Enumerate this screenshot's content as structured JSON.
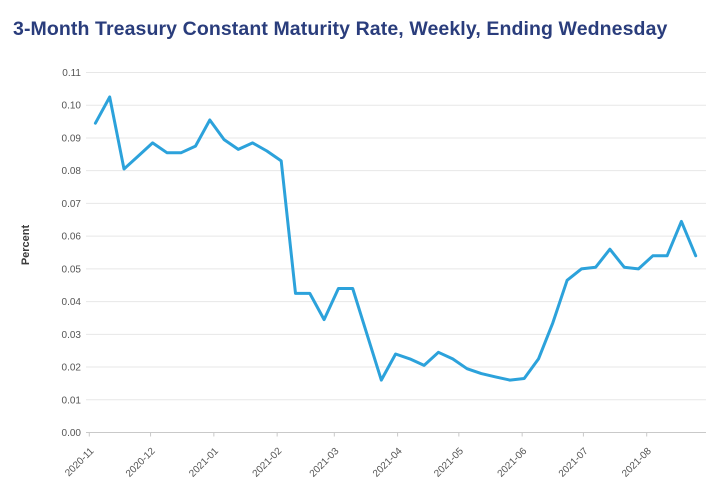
{
  "chart_data": {
    "type": "line",
    "title": "3-Month Treasury Constant Maturity Rate, Weekly, Ending Wednesday",
    "xlabel": "",
    "ylabel": "Percent",
    "series_name": "3-Month Treasury Constant Maturity Rate",
    "x": [
      "2020-11-04",
      "2020-11-11",
      "2020-11-18",
      "2020-11-25",
      "2020-12-02",
      "2020-12-09",
      "2020-12-16",
      "2020-12-23",
      "2020-12-30",
      "2021-01-06",
      "2021-01-13",
      "2021-01-20",
      "2021-01-27",
      "2021-02-03",
      "2021-02-10",
      "2021-02-17",
      "2021-02-24",
      "2021-03-03",
      "2021-03-10",
      "2021-03-17",
      "2021-03-24",
      "2021-03-31",
      "2021-04-07",
      "2021-04-14",
      "2021-04-21",
      "2021-04-28",
      "2021-05-05",
      "2021-05-12",
      "2021-05-19",
      "2021-05-26",
      "2021-06-02",
      "2021-06-09",
      "2021-06-16",
      "2021-06-23",
      "2021-06-30",
      "2021-07-07",
      "2021-07-14",
      "2021-07-21",
      "2021-07-28",
      "2021-08-04",
      "2021-08-11",
      "2021-08-18",
      "2021-08-25"
    ],
    "values": [
      0.0945,
      0.1025,
      0.0805,
      0.0845,
      0.0885,
      0.0855,
      0.0855,
      0.0875,
      0.0955,
      0.0895,
      0.0865,
      0.0885,
      0.086,
      0.083,
      0.0425,
      0.0425,
      0.0345,
      0.044,
      0.044,
      0.03,
      0.016,
      0.024,
      0.0225,
      0.0205,
      0.0245,
      0.0225,
      0.0195,
      0.018,
      0.017,
      0.016,
      0.0165,
      0.0225,
      0.0335,
      0.0465,
      0.05,
      0.0505,
      0.056,
      0.0505,
      0.05,
      0.054,
      0.054,
      0.0645,
      0.054
    ],
    "x_tick_labels": [
      "2020-11",
      "2020-12",
      "2021-01",
      "2021-02",
      "2021-03",
      "2021-04",
      "2021-05",
      "2021-06",
      "2021-07",
      "2021-08"
    ],
    "y_ticks": [
      0.0,
      0.01,
      0.02,
      0.03,
      0.04,
      0.05,
      0.06,
      0.07,
      0.08,
      0.09,
      0.1,
      0.11
    ],
    "ylim": [
      0,
      0.11
    ],
    "grid": "horizontal",
    "legend": "none",
    "line_color": "#2ca2db",
    "grid_color": "#e7e7e7",
    "axis_color": "#c9c9c9",
    "tick_label_color": "#555555",
    "title_color": "#2a3d7c"
  }
}
